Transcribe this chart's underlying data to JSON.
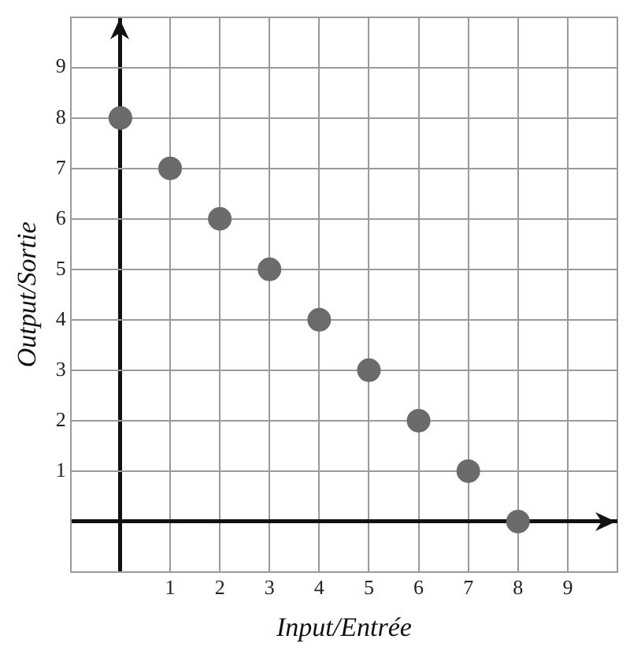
{
  "chart_data": {
    "type": "scatter",
    "xlabel": "Input/Entrée",
    "ylabel": "Output/Sortie",
    "x": [
      0,
      1,
      2,
      3,
      4,
      5,
      6,
      7,
      8
    ],
    "series": [
      {
        "color": "#6b6b6b",
        "values": [
          8,
          7,
          6,
          5,
          4,
          3,
          2,
          1,
          0
        ]
      }
    ],
    "marker": "circle",
    "grid": true,
    "legend": false,
    "xlim": [
      -1,
      10
    ],
    "ylim": [
      -1,
      10
    ],
    "xticks": [
      {
        "value": -1,
        "label": null
      },
      {
        "value": 0,
        "label": null
      },
      1,
      2,
      3,
      4,
      5,
      6,
      7,
      8,
      9,
      {
        "value": 10,
        "label": null
      }
    ],
    "yticks": [
      {
        "value": -1,
        "label": null
      },
      {
        "value": 0,
        "label": null
      },
      1,
      2,
      3,
      4,
      5,
      6,
      7,
      8,
      9,
      {
        "value": 10,
        "label": null
      }
    ]
  }
}
